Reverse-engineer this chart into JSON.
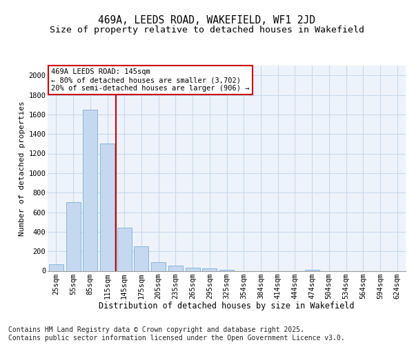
{
  "title1": "469A, LEEDS ROAD, WAKEFIELD, WF1 2JD",
  "title2": "Size of property relative to detached houses in Wakefield",
  "xlabel": "Distribution of detached houses by size in Wakefield",
  "ylabel": "Number of detached properties",
  "categories": [
    "25sqm",
    "55sqm",
    "85sqm",
    "115sqm",
    "145sqm",
    "175sqm",
    "205sqm",
    "235sqm",
    "265sqm",
    "295sqm",
    "325sqm",
    "354sqm",
    "384sqm",
    "414sqm",
    "444sqm",
    "474sqm",
    "504sqm",
    "534sqm",
    "564sqm",
    "594sqm",
    "624sqm"
  ],
  "values": [
    65,
    700,
    1650,
    1300,
    440,
    250,
    90,
    55,
    30,
    25,
    10,
    0,
    0,
    0,
    0,
    10,
    0,
    0,
    0,
    0,
    0
  ],
  "bar_color": "#c5d8f0",
  "bar_edge_color": "#7aafd4",
  "red_line_index": 4,
  "red_line_color": "#cc0000",
  "annotation_text": "469A LEEDS ROAD: 145sqm\n← 80% of detached houses are smaller (3,702)\n20% of semi-detached houses are larger (906) →",
  "annotation_box_color": "#cc0000",
  "ylim": [
    0,
    2100
  ],
  "yticks": [
    0,
    200,
    400,
    600,
    800,
    1000,
    1200,
    1400,
    1600,
    1800,
    2000
  ],
  "grid_color": "#c8d8ee",
  "background_color": "#eef3fb",
  "footer": "Contains HM Land Registry data © Crown copyright and database right 2025.\nContains public sector information licensed under the Open Government Licence v3.0.",
  "footer_fontsize": 7,
  "title1_fontsize": 10.5,
  "title2_fontsize": 9.5,
  "xlabel_fontsize": 8.5,
  "ylabel_fontsize": 8,
  "tick_fontsize": 7.5
}
